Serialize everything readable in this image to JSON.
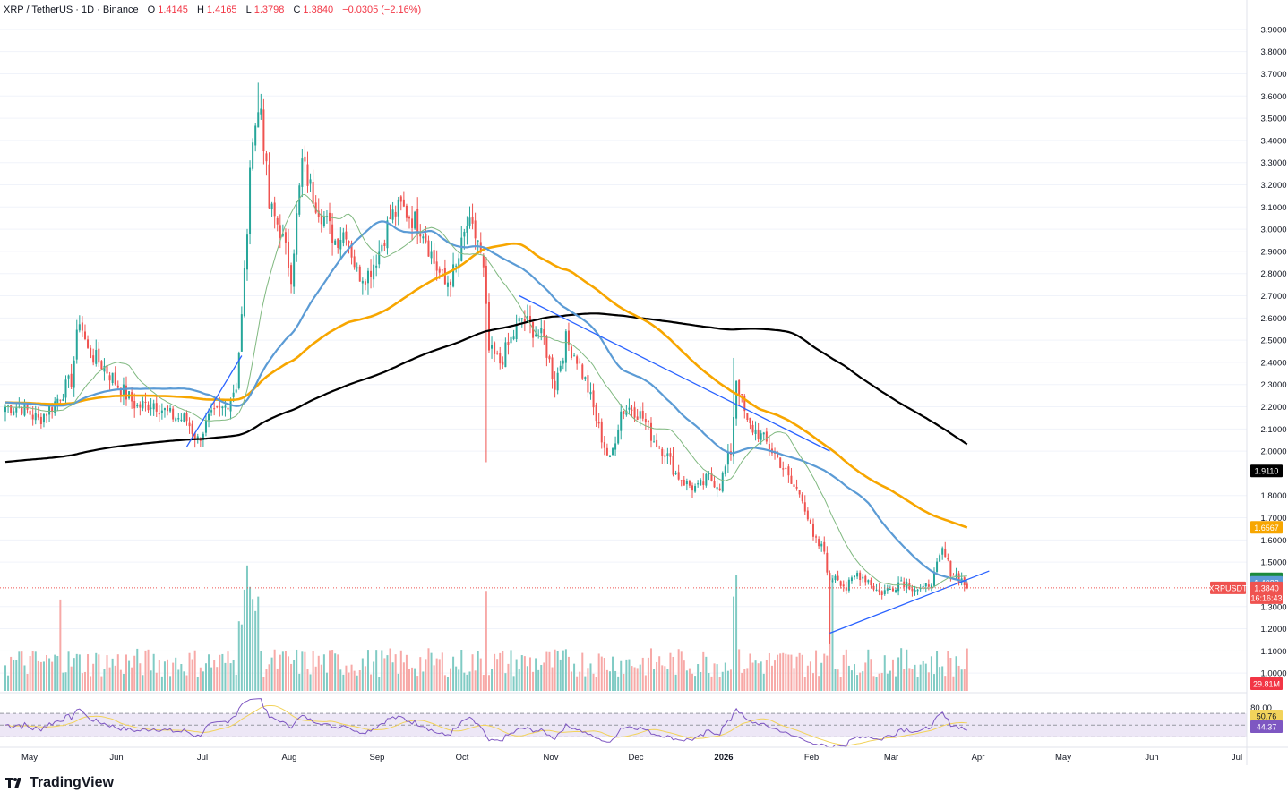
{
  "header": {
    "symbol": "XRP / TetherUS · 1D · Binance",
    "open_label": "O",
    "open": "1.4145",
    "high_label": "H",
    "high": "1.4165",
    "low_label": "L",
    "low": "1.3798",
    "close_label": "C",
    "close": "1.3840",
    "change": "−0.0305 (−2.16%)"
  },
  "branding": {
    "name": "TradingView",
    "icon": "tradingview-logo-icon"
  },
  "colors": {
    "up": "#26a69a",
    "down": "#ef5350",
    "ma_black": "#000000",
    "ma_orange": "#f7a600",
    "ma_blue": "#5b9bd5",
    "ma_green": "#7fb87f",
    "trendline": "#2962ff",
    "rsi": "#7e57c2",
    "rsi_ma": "#f2d35b",
    "rsi_band": "#ede7f6"
  },
  "chart_data": {
    "type": "candlestick",
    "symbol_pair": "XRP / TetherUS",
    "interval": "1D",
    "exchange": "Binance",
    "y_ticks": [
      "3.9000",
      "3.8000",
      "3.7000",
      "3.6000",
      "3.5000",
      "3.4000",
      "3.3000",
      "3.2000",
      "3.1000",
      "3.0000",
      "2.9000",
      "2.8000",
      "2.7000",
      "2.6000",
      "2.5000",
      "2.4000",
      "2.3000",
      "2.2000",
      "2.1000",
      "2.0000",
      "1.8000",
      "1.7000",
      "1.6000",
      "1.5000",
      "1.3000",
      "1.2000",
      "1.1000",
      "1.0000"
    ],
    "x_ticks": [
      "May",
      "Jun",
      "Jul",
      "Aug",
      "Sep",
      "Oct",
      "Nov",
      "Dec",
      "2026",
      "Feb",
      "Mar",
      "Apr",
      "May",
      "Jun",
      "Jul"
    ],
    "ylim": [
      0.92,
      3.96
    ],
    "price_anchors": [
      {
        "t": 0,
        "p": 2.2
      },
      {
        "t": 6,
        "p": 2.2
      },
      {
        "t": 12,
        "p": 2.14
      },
      {
        "t": 18,
        "p": 2.22
      },
      {
        "t": 24,
        "p": 2.32
      },
      {
        "t": 27,
        "p": 2.6
      },
      {
        "t": 30,
        "p": 2.45
      },
      {
        "t": 36,
        "p": 2.38
      },
      {
        "t": 42,
        "p": 2.28
      },
      {
        "t": 48,
        "p": 2.2
      },
      {
        "t": 54,
        "p": 2.22
      },
      {
        "t": 60,
        "p": 2.16
      },
      {
        "t": 66,
        "p": 2.14
      },
      {
        "t": 70,
        "p": 2.05
      },
      {
        "t": 74,
        "p": 2.14
      },
      {
        "t": 80,
        "p": 2.2
      },
      {
        "t": 84,
        "p": 2.3
      },
      {
        "t": 86,
        "p": 2.6
      },
      {
        "t": 88,
        "p": 3.0
      },
      {
        "t": 90,
        "p": 3.45
      },
      {
        "t": 93,
        "p": 3.55
      },
      {
        "t": 96,
        "p": 3.1
      },
      {
        "t": 100,
        "p": 3.0
      },
      {
        "t": 104,
        "p": 2.8
      },
      {
        "t": 108,
        "p": 3.3
      },
      {
        "t": 112,
        "p": 3.15
      },
      {
        "t": 116,
        "p": 3.05
      },
      {
        "t": 120,
        "p": 2.95
      },
      {
        "t": 124,
        "p": 3.0
      },
      {
        "t": 128,
        "p": 2.8
      },
      {
        "t": 132,
        "p": 2.8
      },
      {
        "t": 136,
        "p": 2.9
      },
      {
        "t": 140,
        "p": 3.05
      },
      {
        "t": 144,
        "p": 3.1
      },
      {
        "t": 148,
        "p": 3.05
      },
      {
        "t": 152,
        "p": 3.0
      },
      {
        "t": 156,
        "p": 2.85
      },
      {
        "t": 160,
        "p": 2.75
      },
      {
        "t": 164,
        "p": 2.82
      },
      {
        "t": 168,
        "p": 3.02
      },
      {
        "t": 172,
        "p": 2.95
      },
      {
        "t": 174,
        "p": 2.8
      },
      {
        "t": 176,
        "p": 2.45
      },
      {
        "t": 180,
        "p": 2.4
      },
      {
        "t": 184,
        "p": 2.5
      },
      {
        "t": 188,
        "p": 2.6
      },
      {
        "t": 192,
        "p": 2.55
      },
      {
        "t": 196,
        "p": 2.5
      },
      {
        "t": 200,
        "p": 2.3
      },
      {
        "t": 204,
        "p": 2.5
      },
      {
        "t": 208,
        "p": 2.42
      },
      {
        "t": 212,
        "p": 2.28
      },
      {
        "t": 216,
        "p": 2.1
      },
      {
        "t": 220,
        "p": 1.95
      },
      {
        "t": 224,
        "p": 2.18
      },
      {
        "t": 228,
        "p": 2.2
      },
      {
        "t": 232,
        "p": 2.15
      },
      {
        "t": 236,
        "p": 2.05
      },
      {
        "t": 240,
        "p": 2.0
      },
      {
        "t": 244,
        "p": 1.9
      },
      {
        "t": 248,
        "p": 1.85
      },
      {
        "t": 252,
        "p": 1.83
      },
      {
        "t": 256,
        "p": 1.88
      },
      {
        "t": 260,
        "p": 1.85
      },
      {
        "t": 264,
        "p": 2.0
      },
      {
        "t": 266,
        "p": 2.33
      },
      {
        "t": 270,
        "p": 2.12
      },
      {
        "t": 274,
        "p": 2.08
      },
      {
        "t": 278,
        "p": 2.02
      },
      {
        "t": 282,
        "p": 1.95
      },
      {
        "t": 286,
        "p": 1.85
      },
      {
        "t": 290,
        "p": 1.8
      },
      {
        "t": 294,
        "p": 1.6
      },
      {
        "t": 298,
        "p": 1.55
      },
      {
        "t": 300,
        "p": 1.4
      },
      {
        "t": 302,
        "p": 1.45
      },
      {
        "t": 306,
        "p": 1.38
      },
      {
        "t": 310,
        "p": 1.45
      },
      {
        "t": 314,
        "p": 1.42
      },
      {
        "t": 318,
        "p": 1.36
      },
      {
        "t": 322,
        "p": 1.38
      },
      {
        "t": 326,
        "p": 1.42
      },
      {
        "t": 330,
        "p": 1.39
      },
      {
        "t": 334,
        "p": 1.37
      },
      {
        "t": 338,
        "p": 1.44
      },
      {
        "t": 341,
        "p": 1.55
      },
      {
        "t": 344,
        "p": 1.46
      },
      {
        "t": 348,
        "p": 1.42
      },
      {
        "t": 350,
        "p": 1.384
      }
    ],
    "moving_averages": [
      {
        "name": "black",
        "last": "1.9110"
      },
      {
        "name": "orange",
        "last": "1.6567"
      },
      {
        "name": "green",
        "last": "1.4249"
      },
      {
        "name": "blue",
        "last": "1.4088"
      }
    ],
    "last_price": {
      "symbol": "XRPUSDT",
      "value": "1.3840",
      "countdown": "16:16:43"
    },
    "trendlines": [
      {
        "from": {
          "t": 66,
          "p": 2.02
        },
        "to": {
          "t": 86,
          "p": 2.43
        }
      },
      {
        "from": {
          "t": 187,
          "p": 2.7
        },
        "to": {
          "t": 300,
          "p": 2.0
        }
      },
      {
        "from": {
          "t": 300,
          "p": 1.18
        },
        "to": {
          "t": 358,
          "p": 1.46
        }
      }
    ],
    "volume": {
      "last": "29.81M"
    },
    "rsi": {
      "ticks": [
        "80.00"
      ],
      "value": "44.37",
      "ma": "50.76",
      "band": [
        30,
        70
      ]
    }
  }
}
